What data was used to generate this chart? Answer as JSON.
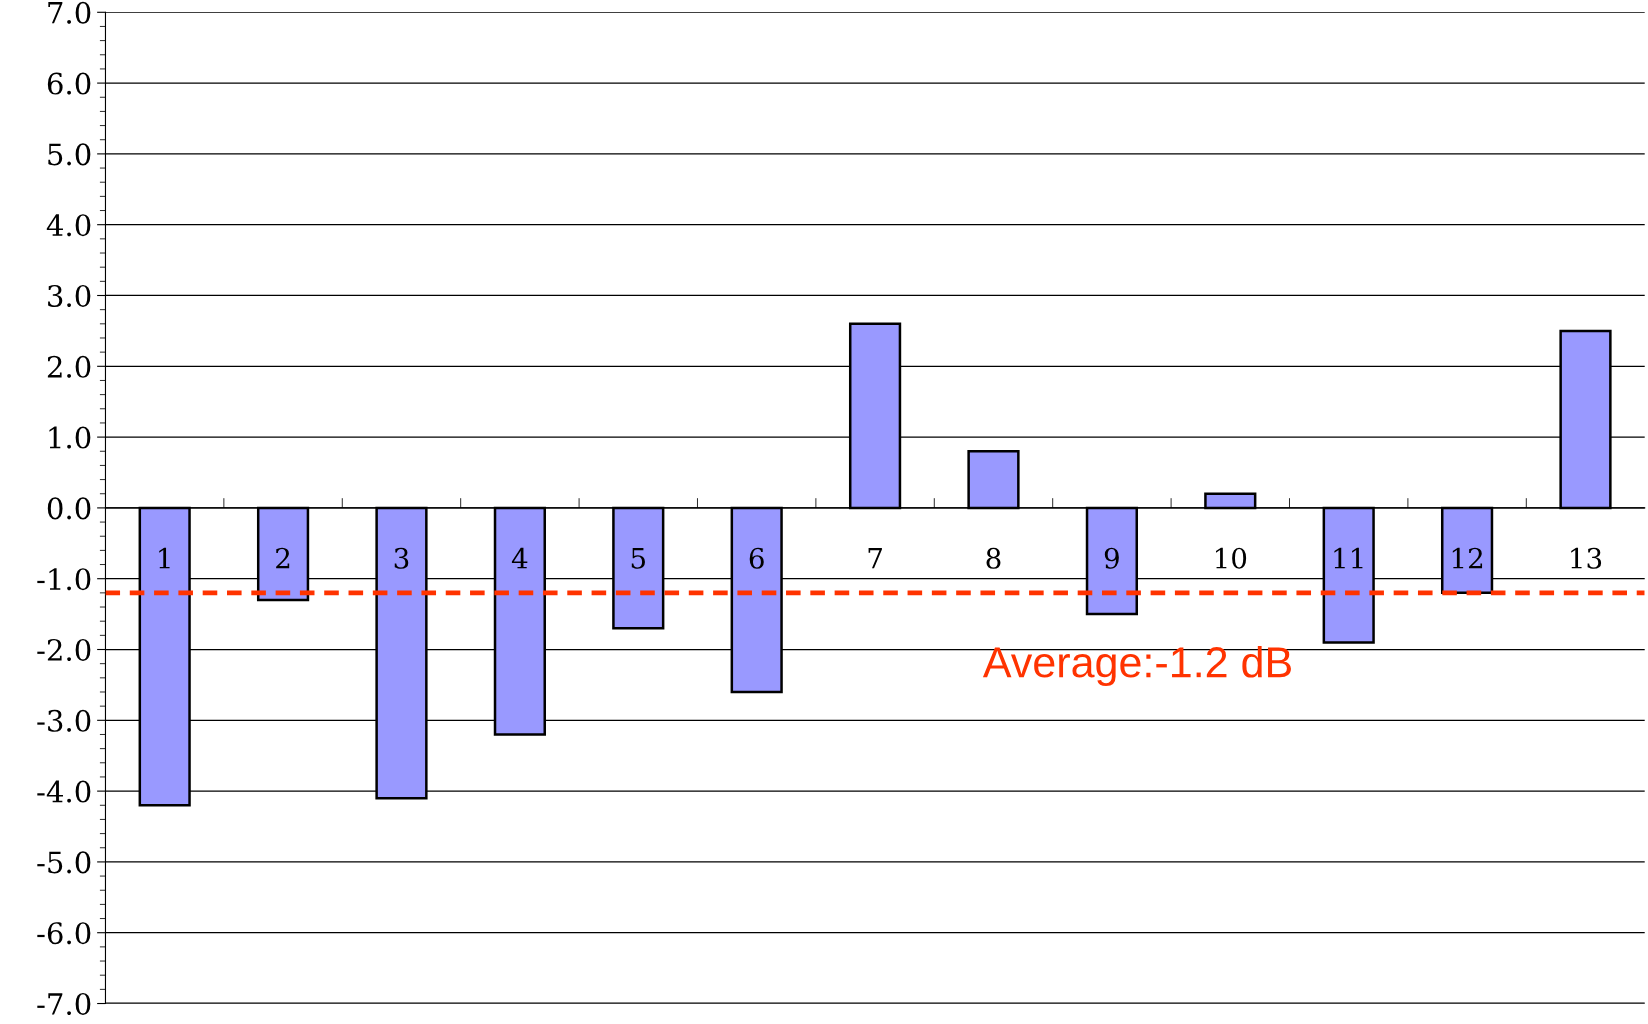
{
  "chart_data": {
    "type": "bar",
    "categories": [
      "1",
      "2",
      "3",
      "4",
      "5",
      "6",
      "7",
      "8",
      "9",
      "10",
      "11",
      "12",
      "13"
    ],
    "values": [
      -4.2,
      -1.3,
      -4.1,
      -3.2,
      -1.7,
      -2.6,
      2.6,
      0.8,
      -1.5,
      0.2,
      -1.9,
      -1.2,
      2.5
    ],
    "color": "#9999ff",
    "ylim": [
      -7.0,
      7.0
    ],
    "yticks": [
      {
        "value": -7,
        "label": "-7.0"
      },
      {
        "value": -6,
        "label": "-6.0"
      },
      {
        "value": -5,
        "label": "-5.0"
      },
      {
        "value": -4,
        "label": "-4.0"
      },
      {
        "value": -3,
        "label": "-3.0"
      },
      {
        "value": -2,
        "label": "-2.0"
      },
      {
        "value": -1,
        "label": "-1.0"
      },
      {
        "value": 0,
        "label": "0.0"
      },
      {
        "value": 1,
        "label": "1.0"
      },
      {
        "value": 2,
        "label": "2.0"
      },
      {
        "value": 3,
        "label": "3.0"
      },
      {
        "value": 4,
        "label": "4.0"
      },
      {
        "value": 5,
        "label": "5.0"
      },
      {
        "value": 6,
        "label": "6.0"
      },
      {
        "value": 7,
        "label": "7.0"
      }
    ],
    "grid": "y",
    "ref_lines": [
      {
        "axis": "y",
        "value": -1.2,
        "label": "Average:-1.2 dB",
        "color": "#ff3300",
        "line_style": "dashed"
      }
    ]
  }
}
